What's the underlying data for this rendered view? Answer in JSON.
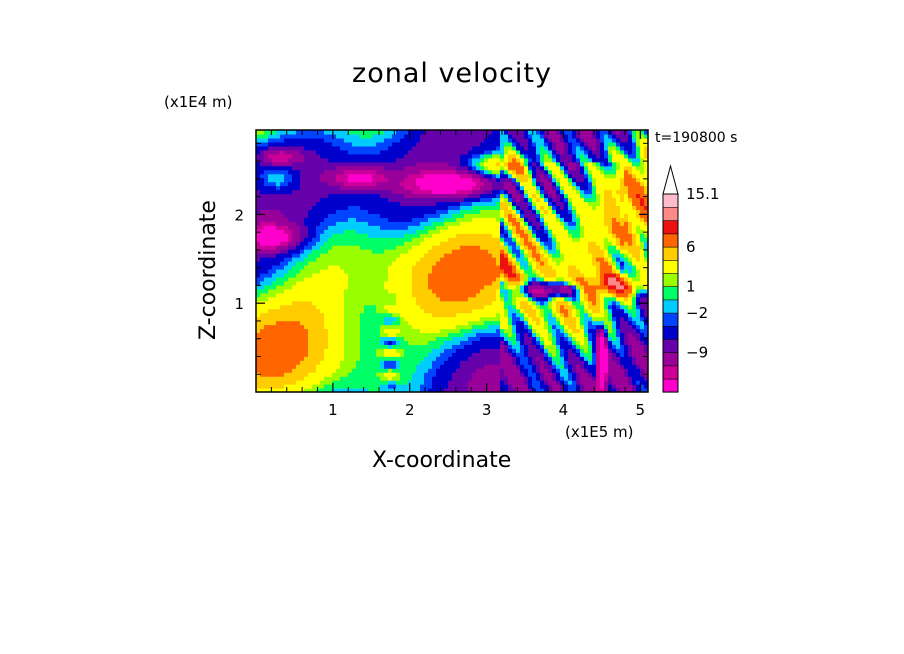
{
  "chart_data": {
    "type": "heatmap",
    "title": "zonal velocity",
    "xlabel": "X-coordinate",
    "ylabel": "Z-coordinate",
    "x_unit_label": "(x1E5 m)",
    "y_unit_label": "(x1E4 m)",
    "annotation": "t=190800 s",
    "xlim": [
      0,
      5.1
    ],
    "ylim": [
      0,
      2.95
    ],
    "x_ticks": [
      "1",
      "2",
      "3",
      "4",
      "5"
    ],
    "y_ticks": [
      "1",
      "2"
    ],
    "colorbar": {
      "labels": [
        "15.1",
        "6",
        "1",
        "−2",
        "−9"
      ],
      "levels": [
        -15,
        -12,
        -9,
        -6,
        -4,
        -2,
        -1,
        0,
        1,
        2,
        4,
        6,
        9,
        12,
        15.1
      ],
      "colors": [
        "#ff00cc",
        "#cc0099",
        "#990099",
        "#6600aa",
        "#0000cc",
        "#0044ff",
        "#00ccff",
        "#00ff66",
        "#99ff00",
        "#ffff00",
        "#ffcc00",
        "#ff6600",
        "#ee1111",
        "#ff8888",
        "#ffbbcc"
      ],
      "extend": "max"
    }
  }
}
